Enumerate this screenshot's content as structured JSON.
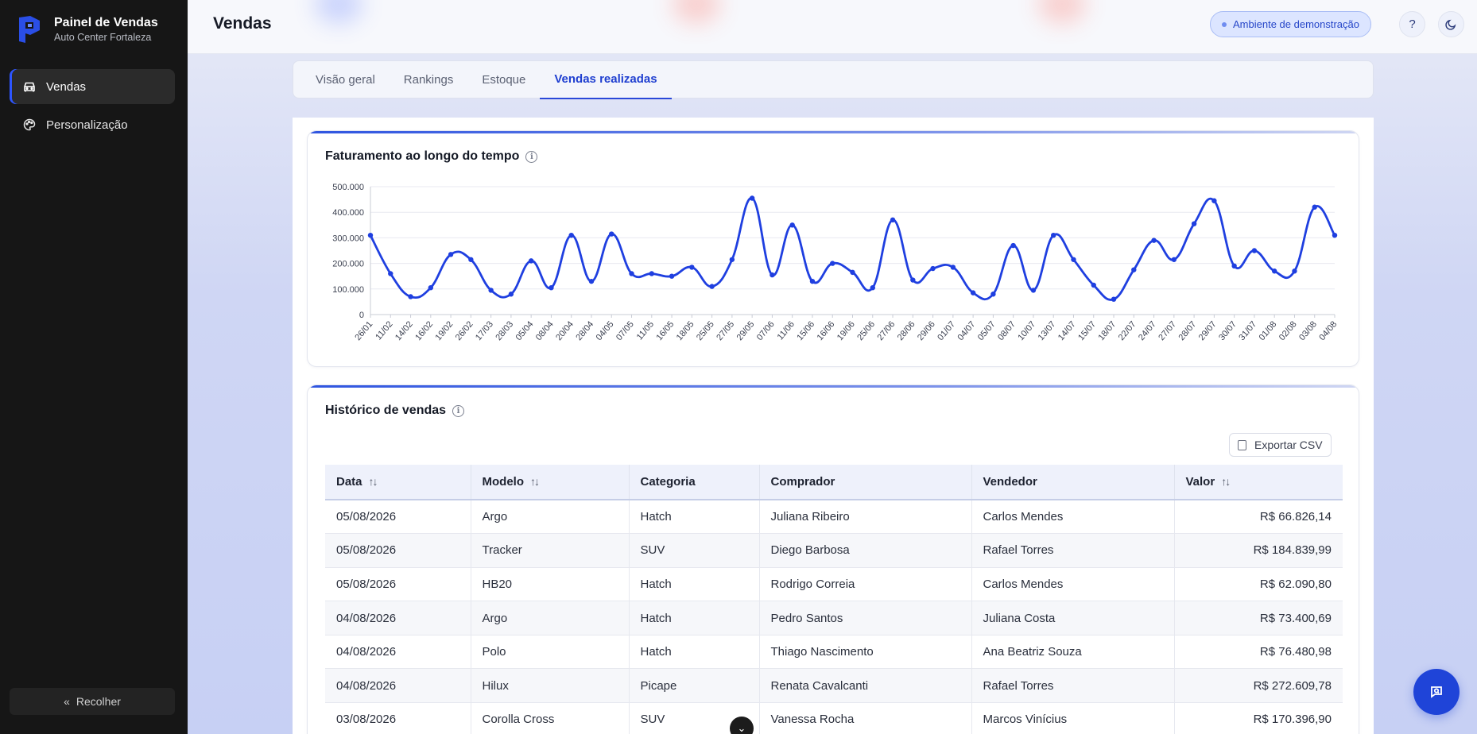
{
  "brand": {
    "title": "Painel de Vendas",
    "subtitle": "Auto Center Fortaleza"
  },
  "sidebar": {
    "items": [
      {
        "label": "Vendas",
        "icon": "car-icon",
        "active": true
      },
      {
        "label": "Personalização",
        "icon": "palette-icon",
        "active": false
      }
    ],
    "collapse_label": "Recolher"
  },
  "header": {
    "title": "Vendas",
    "demo_badge": "Ambiente de demonstração",
    "help_icon": "?",
    "theme_icon": "moon-icon"
  },
  "tabs": [
    {
      "label": "Visão geral",
      "active": false
    },
    {
      "label": "Rankings",
      "active": false
    },
    {
      "label": "Estoque",
      "active": false
    },
    {
      "label": "Vendas realizadas",
      "active": true
    }
  ],
  "revenue_card": {
    "title": "Faturamento ao longo do tempo"
  },
  "chart_data": {
    "type": "line",
    "title": "Faturamento ao longo do tempo",
    "xlabel": "",
    "ylabel": "",
    "ylim": [
      0,
      500000
    ],
    "y_ticks": [
      "0",
      "100.000",
      "200.000",
      "300.000",
      "400.000",
      "500.000"
    ],
    "grid": true,
    "color": "#1f3fe0",
    "x": [
      "26/01",
      "11/02",
      "14/02",
      "16/02",
      "19/02",
      "26/02",
      "17/03",
      "28/03",
      "05/04",
      "08/04",
      "20/04",
      "28/04",
      "04/05",
      "07/05",
      "11/05",
      "16/05",
      "18/05",
      "25/05",
      "27/05",
      "29/05",
      "07/06",
      "11/06",
      "15/06",
      "16/06",
      "19/06",
      "25/06",
      "27/06",
      "28/06",
      "29/06",
      "01/07",
      "04/07",
      "05/07",
      "08/07",
      "10/07",
      "13/07",
      "14/07",
      "15/07",
      "18/07",
      "22/07",
      "24/07",
      "27/07",
      "28/07",
      "29/07",
      "30/07",
      "31/07",
      "01/08",
      "02/08",
      "03/08",
      "04/08"
    ],
    "values": [
      310000,
      160000,
      70000,
      105000,
      235000,
      215000,
      95000,
      80000,
      210000,
      105000,
      310000,
      130000,
      315000,
      160000,
      160000,
      150000,
      185000,
      110000,
      215000,
      455000,
      155000,
      350000,
      130000,
      200000,
      165000,
      105000,
      370000,
      135000,
      180000,
      185000,
      85000,
      80000,
      270000,
      95000,
      310000,
      215000,
      115000,
      60000,
      175000,
      290000,
      215000,
      355000,
      445000,
      190000,
      250000,
      170000,
      170000,
      420000,
      310000
    ]
  },
  "sales_card": {
    "title": "Histórico de vendas",
    "export_label": "Exportar CSV",
    "columns": [
      {
        "label": "Data",
        "sortable": true
      },
      {
        "label": "Modelo",
        "sortable": true
      },
      {
        "label": "Categoria",
        "sortable": false
      },
      {
        "label": "Comprador",
        "sortable": false
      },
      {
        "label": "Vendedor",
        "sortable": false
      },
      {
        "label": "Valor",
        "sortable": true
      }
    ],
    "rows": [
      [
        "05/08/2026",
        "Argo",
        "Hatch",
        "Juliana Ribeiro",
        "Carlos Mendes",
        "R$ 66.826,14"
      ],
      [
        "05/08/2026",
        "Tracker",
        "SUV",
        "Diego Barbosa",
        "Rafael Torres",
        "R$ 184.839,99"
      ],
      [
        "05/08/2026",
        "HB20",
        "Hatch",
        "Rodrigo Correia",
        "Carlos Mendes",
        "R$ 62.090,80"
      ],
      [
        "04/08/2026",
        "Argo",
        "Hatch",
        "Pedro Santos",
        "Juliana Costa",
        "R$ 73.400,69"
      ],
      [
        "04/08/2026",
        "Polo",
        "Hatch",
        "Thiago Nascimento",
        "Ana Beatriz Souza",
        "R$ 76.480,98"
      ],
      [
        "04/08/2026",
        "Hilux",
        "Picape",
        "Renata Cavalcanti",
        "Rafael Torres",
        "R$ 272.609,78"
      ],
      [
        "03/08/2026",
        "Corolla Cross",
        "SUV",
        "Vanessa Rocha",
        "Marcos Vinícius",
        "R$ 170.396,90"
      ]
    ]
  }
}
